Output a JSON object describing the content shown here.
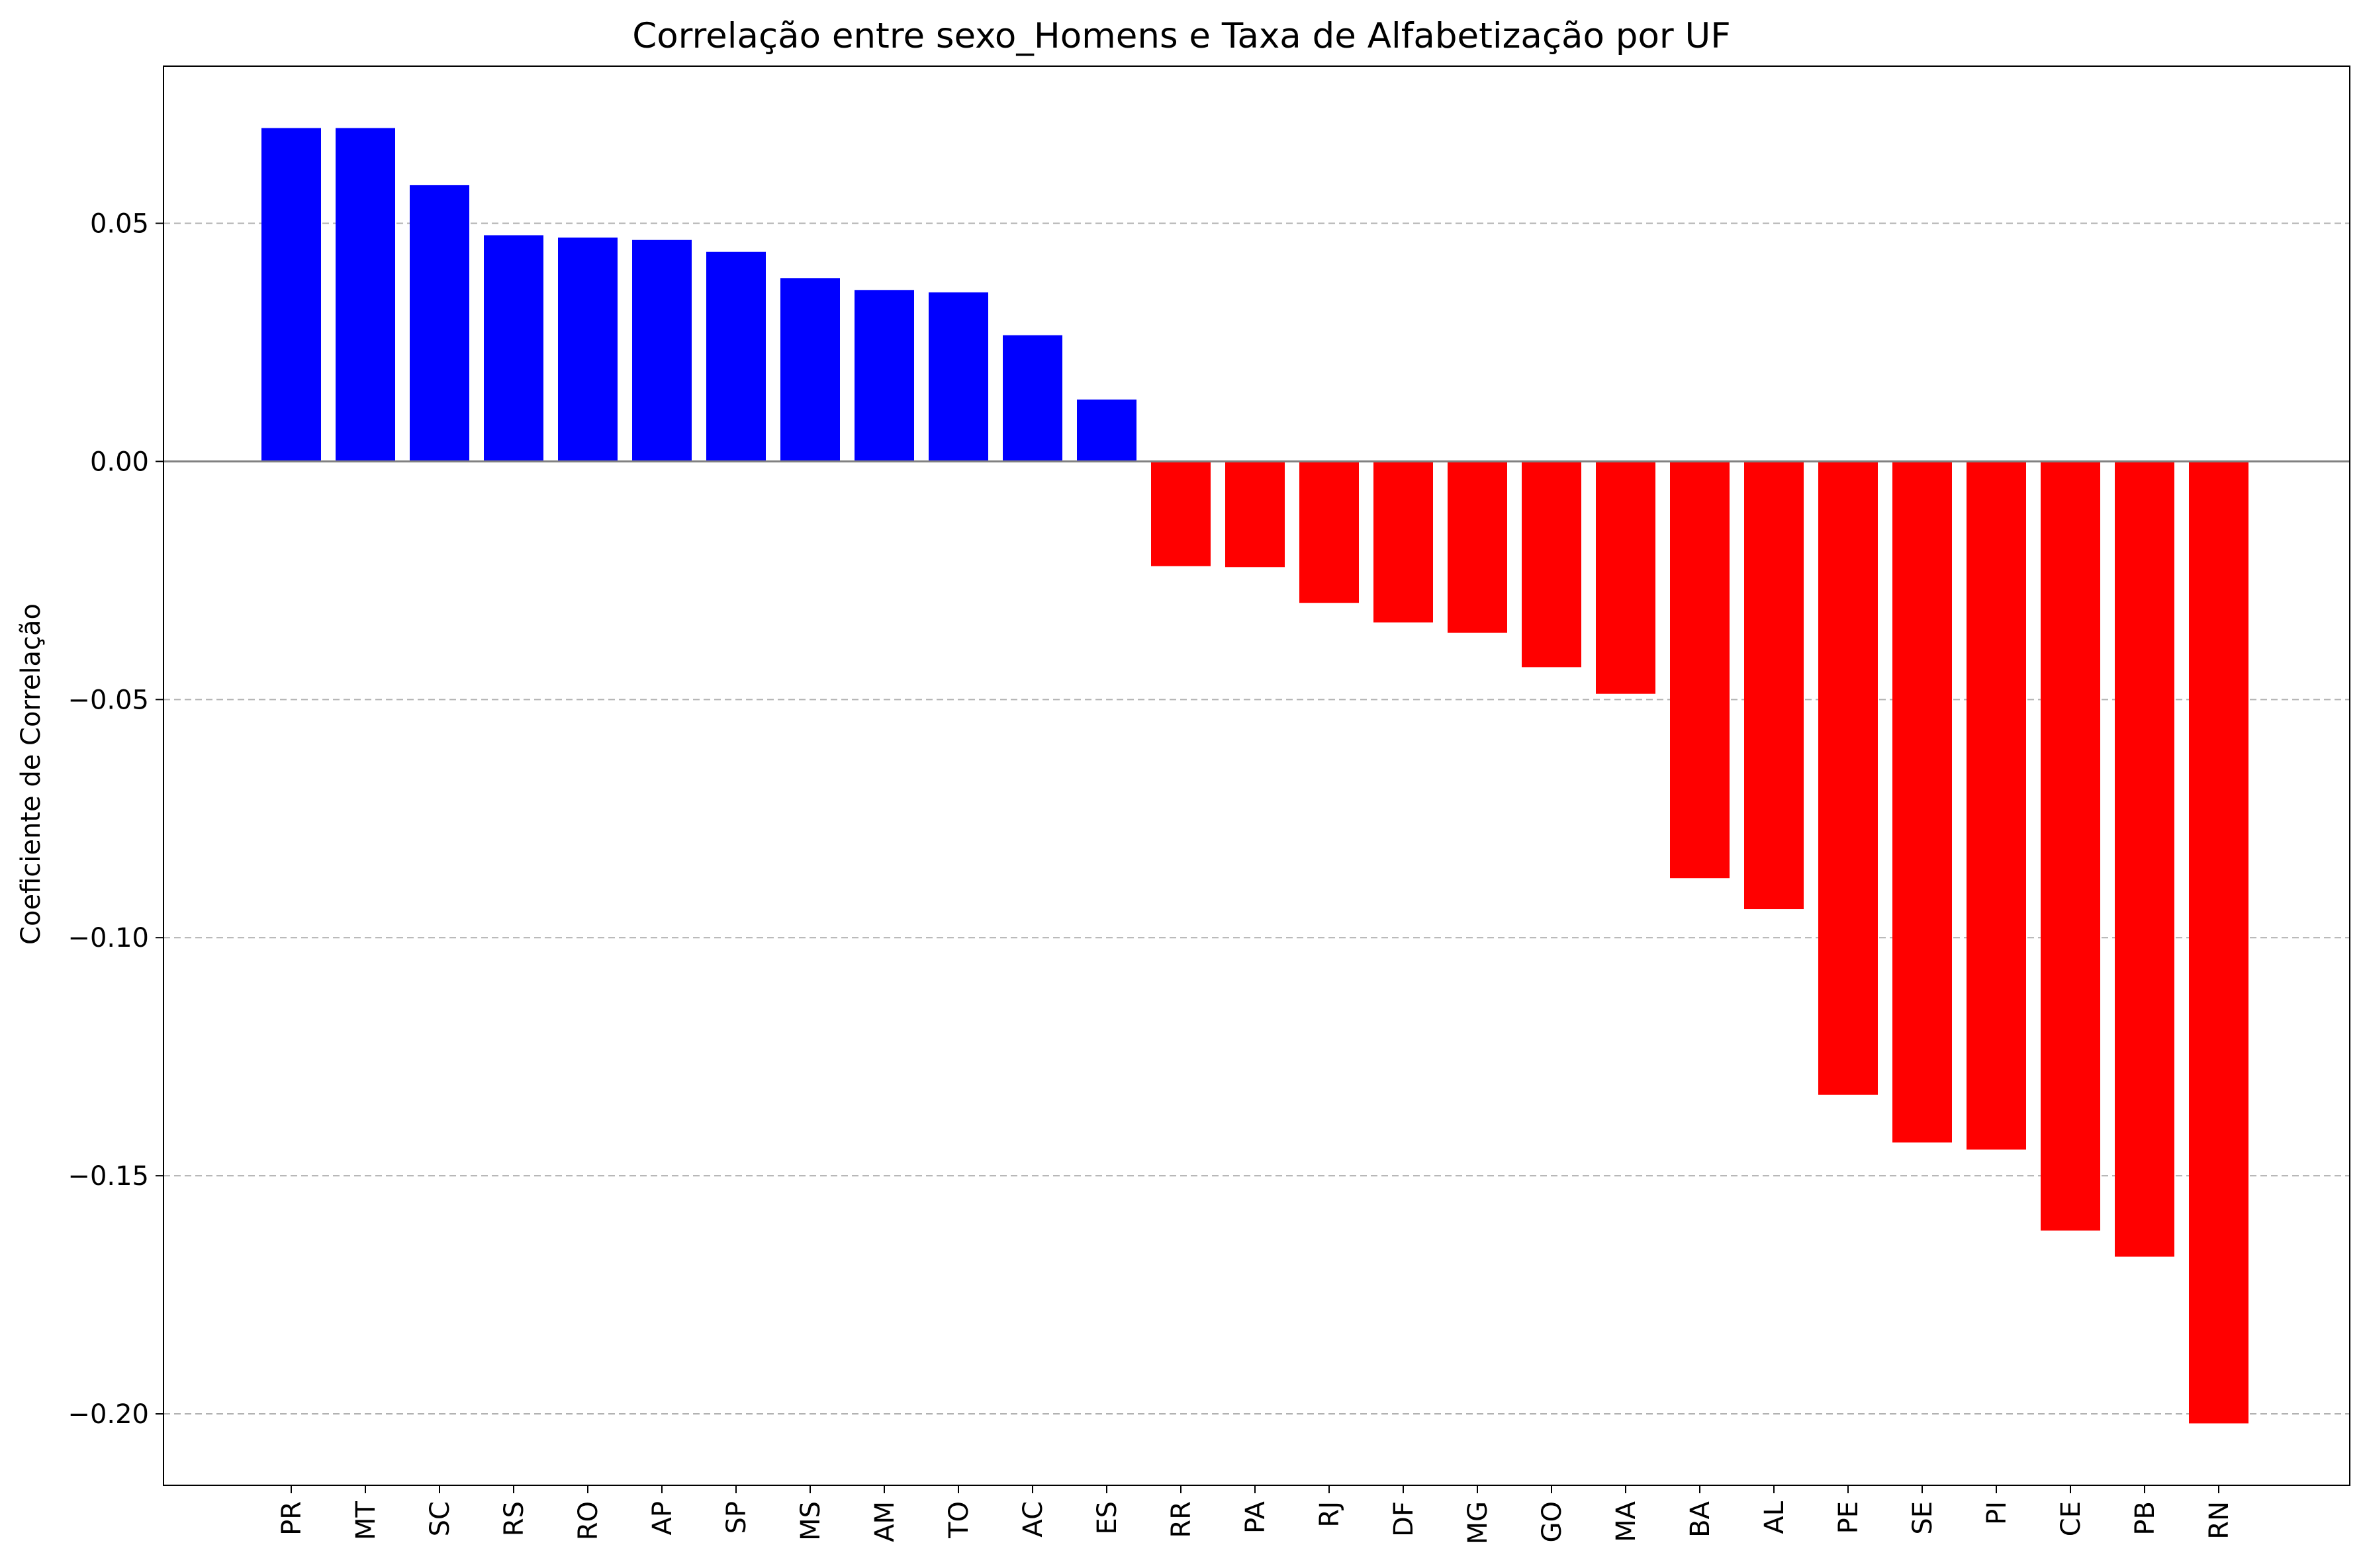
{
  "chart_data": {
    "type": "bar",
    "title": "Correlação entre sexo_Homens e Taxa de Alfabetização por UF",
    "xlabel": "",
    "ylabel": "Coeficiente de Correlação",
    "categories": [
      "PR",
      "MT",
      "SC",
      "RS",
      "RO",
      "AP",
      "SP",
      "MS",
      "AM",
      "TO",
      "AC",
      "ES",
      "RR",
      "PA",
      "RJ",
      "DF",
      "MG",
      "GO",
      "MA",
      "BA",
      "AL",
      "PE",
      "SE",
      "PI",
      "CE",
      "PB",
      "RN"
    ],
    "values": [
      0.07,
      0.07,
      0.058,
      0.0475,
      0.047,
      0.0465,
      0.044,
      0.0385,
      0.036,
      0.0355,
      0.0265,
      0.013,
      -0.022,
      -0.0222,
      -0.0297,
      -0.0338,
      -0.036,
      -0.0432,
      -0.0488,
      -0.0875,
      -0.094,
      -0.133,
      -0.143,
      -0.1445,
      -0.1615,
      -0.167,
      -0.202
    ],
    "ylim": [
      -0.215,
      0.083
    ],
    "yticks": [
      0.05,
      0.0,
      -0.05,
      -0.1,
      -0.15,
      -0.2
    ],
    "ytick_labels": [
      "0.05",
      "0.00",
      "−0.05",
      "−0.10",
      "−0.15",
      "−0.20"
    ],
    "grid": "y dashed",
    "colors": {
      "positive": "#0000ff",
      "negative": "#ff0000",
      "grid": "#b0b0b0",
      "zero_line": "#808080"
    }
  }
}
